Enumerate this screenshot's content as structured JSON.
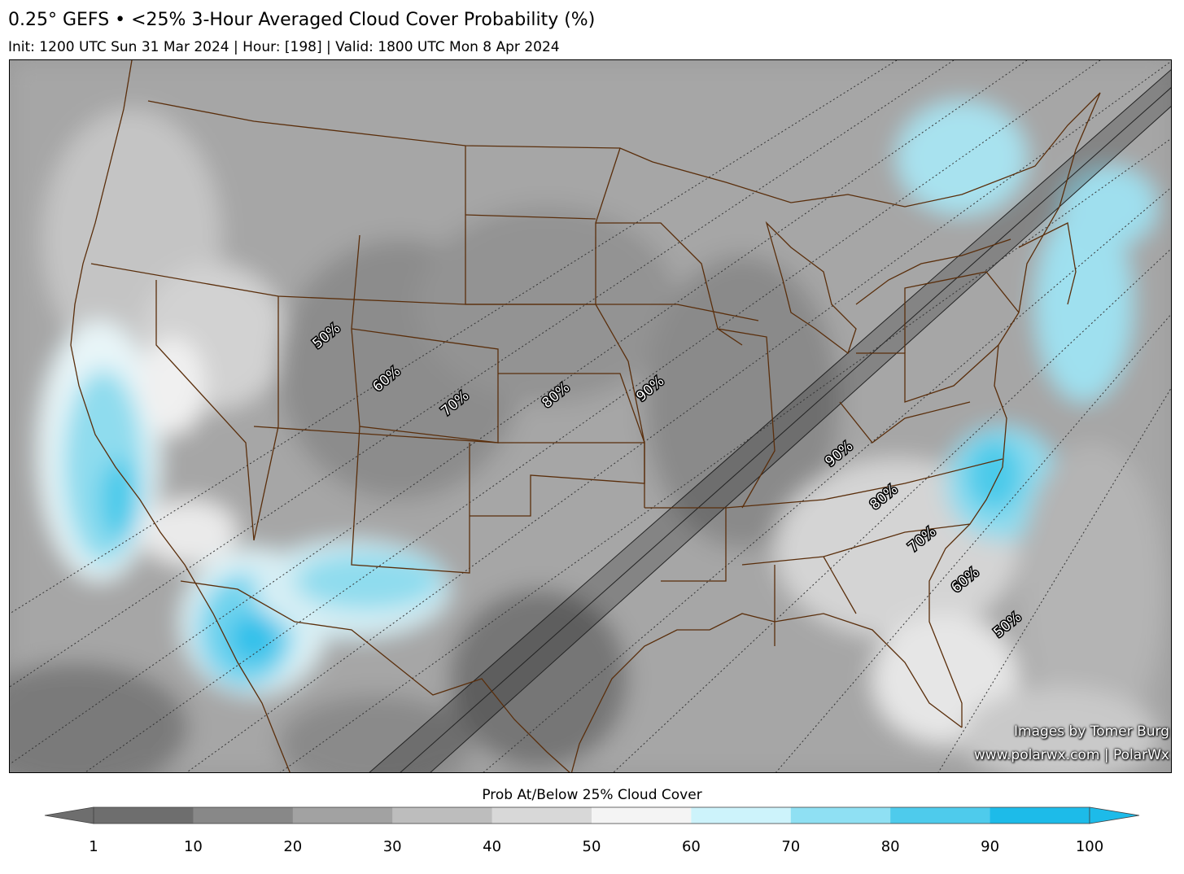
{
  "title": "0.25° GEFS • <25% 3-Hour Averaged Cloud Cover Probability (%)",
  "subtitle": "Init: 1200 UTC Sun 31 Mar 2024 | Hour: [198] | Valid: 1800 UTC Mon 8 Apr 2024",
  "credits": {
    "line1": "Images by Tomer Burg",
    "line2": "www.polarwx.com | PolarWx"
  },
  "colorbar": {
    "title": "Prob At/Below 25% Cloud Cover",
    "ticks": [
      "1",
      "10",
      "20",
      "30",
      "40",
      "50",
      "60",
      "70",
      "80",
      "90",
      "100"
    ],
    "colors": [
      "#6e6e6e",
      "#888888",
      "#a2a2a2",
      "#bdbdbd",
      "#d8d8d8",
      "#f4f4f4",
      "#cdf3fb",
      "#8fe0f3",
      "#4ecbec",
      "#1dbbe9"
    ]
  },
  "totality_labels": {
    "west": [
      "50%",
      "60%",
      "70%",
      "80%",
      "90%"
    ],
    "east": [
      "90%",
      "80%",
      "70%",
      "60%",
      "50%"
    ]
  },
  "colors": {
    "borders": "#5a2e0b",
    "frame": "#000000"
  }
}
